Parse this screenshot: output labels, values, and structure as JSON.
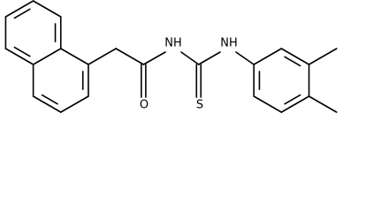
{
  "atoms": [
    "NH",
    "O",
    "NH",
    "S"
  ]
}
